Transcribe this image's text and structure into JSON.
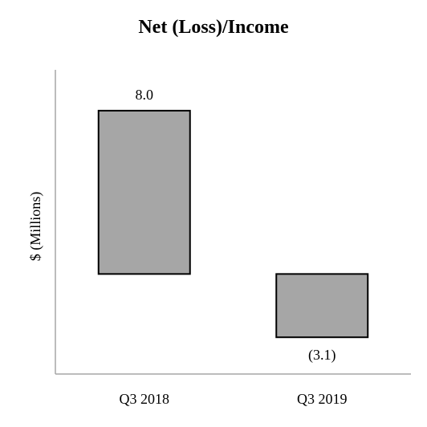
{
  "chart_data": {
    "type": "bar",
    "title": "Net (Loss)/Income",
    "ylabel": "$ (Millions)",
    "xlabel": "",
    "categories": [
      "Q3 2018",
      "Q3 2019"
    ],
    "series": [
      {
        "values": [
          8.0,
          -3.1
        ],
        "value_labels": [
          "8.0",
          "(3.1)"
        ]
      }
    ],
    "ylim": [
      -4.9,
      10.0
    ],
    "grid": false,
    "legend": "none",
    "bar_color": "#a6a6a6",
    "bar_edge_color": "#000000",
    "axis_color": "#a6a6a6"
  }
}
